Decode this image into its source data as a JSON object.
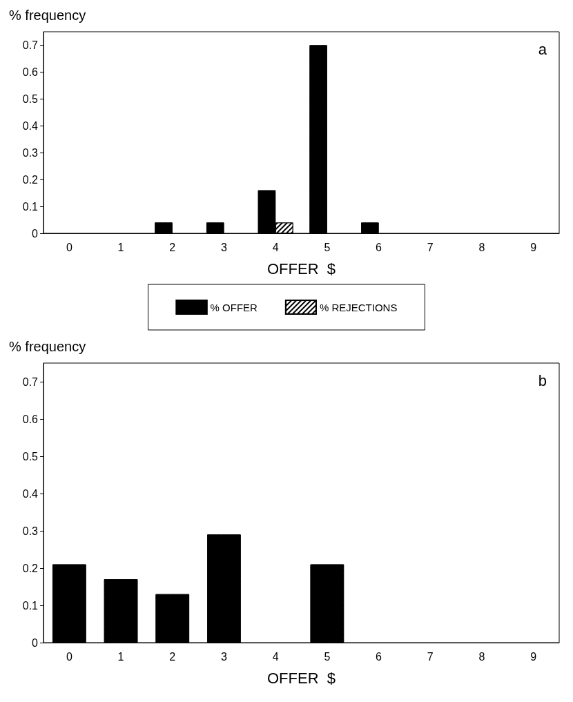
{
  "chart_data": [
    {
      "type": "bar",
      "xlabel": "OFFER  $",
      "ylabel": "% frequency",
      "categories": [
        "0",
        "1",
        "2",
        "3",
        "4",
        "5",
        "6",
        "7",
        "8",
        "9"
      ],
      "series": [
        {
          "name": "% OFFER",
          "color": "#000000",
          "values": [
            0,
            0,
            0.04,
            0.04,
            0.16,
            0.7,
            0.04,
            0,
            0,
            0
          ]
        },
        {
          "name": "% REJECTIONS",
          "color": "#ffffff",
          "values": [
            0,
            0,
            0,
            0,
            0.04,
            0,
            0,
            0,
            0,
            0
          ]
        }
      ],
      "ylim": [
        0,
        0.75
      ],
      "yticks": [
        0,
        0.1,
        0.2,
        0.3,
        0.4,
        0.5,
        0.6,
        0.7
      ],
      "grid": false,
      "legend": "bottom",
      "annotations": [
        "a"
      ]
    },
    {
      "type": "bar",
      "xlabel": "OFFER  $",
      "ylabel": "% frequency",
      "categories": [
        "0",
        "1",
        "2",
        "3",
        "4",
        "5",
        "6",
        "7",
        "8",
        "9"
      ],
      "series": [
        {
          "color": "#000000",
          "values": [
            0.21,
            0.17,
            0.13,
            0.29,
            0,
            0.21,
            0,
            0,
            0,
            0
          ]
        }
      ],
      "ylim": [
        0,
        0.75
      ],
      "yticks": [
        0,
        0.1,
        0.2,
        0.3,
        0.4,
        0.5,
        0.6,
        0.7
      ],
      "grid": false,
      "legend": false,
      "annotations": [
        "b"
      ]
    }
  ]
}
